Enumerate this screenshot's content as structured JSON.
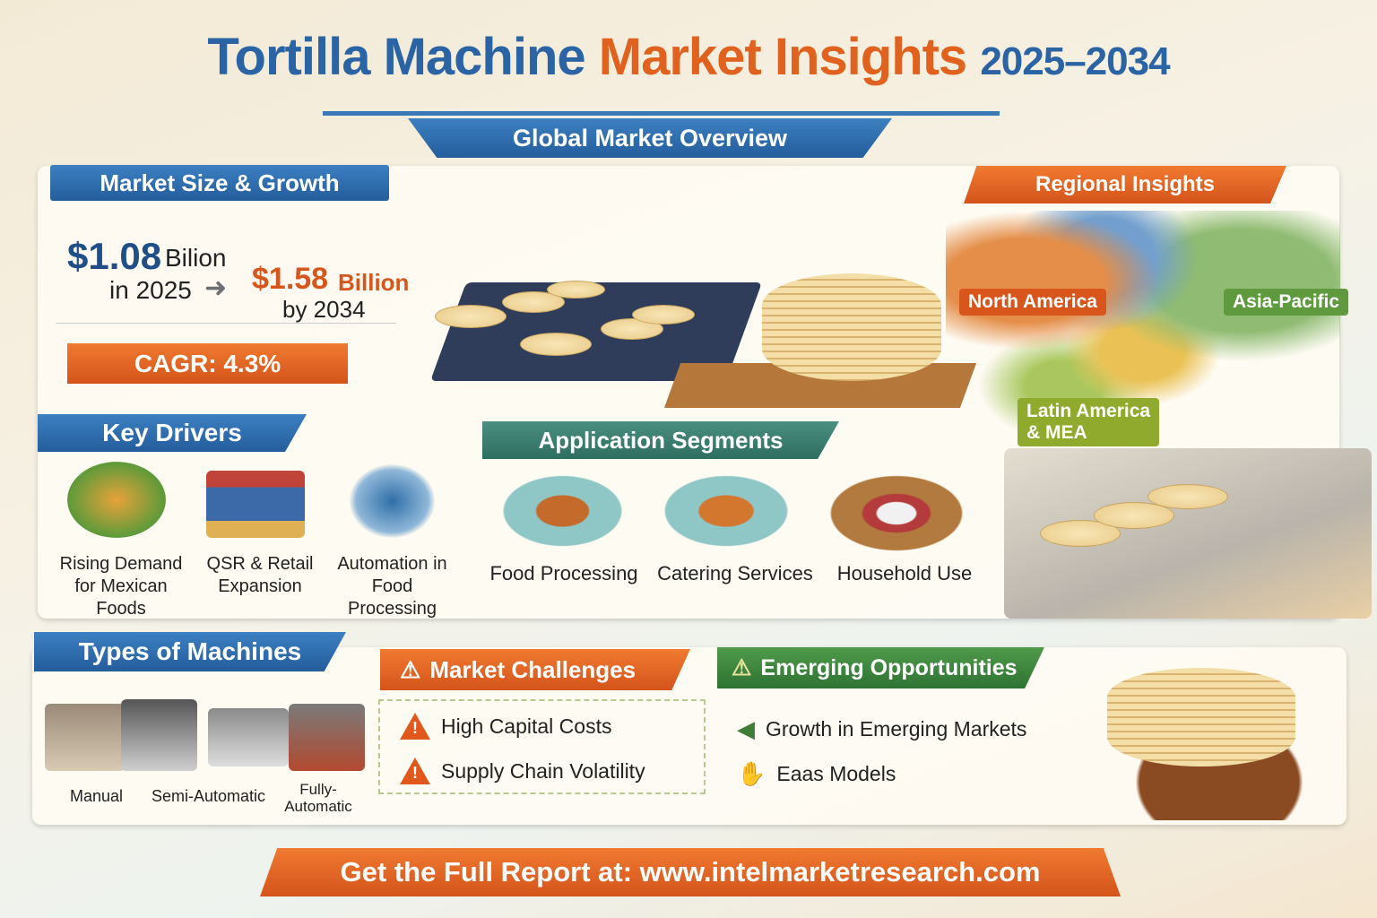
{
  "title": {
    "part1": "Tortilla Machine",
    "part2": "Market Insights",
    "years": "2025–2034"
  },
  "overview_label": "Global Market Overview",
  "market_size": {
    "heading": "Market Size & Growth",
    "value_2025": "$1.08",
    "unit_2025": "Bilion",
    "year_2025": "in 2025",
    "value_2034": "$1.58",
    "unit_2034": "Billion",
    "year_2034": "by 2034",
    "cagr": "CAGR: 4.3%"
  },
  "regional": {
    "heading": "Regional Insights",
    "regions": [
      "North America",
      "Asia-Pacific",
      "Latin America\n& MEA"
    ]
  },
  "key_drivers": {
    "heading": "Key Drivers",
    "items": [
      {
        "label": "Rising Demand for Mexican Foods",
        "icon": "food-icon"
      },
      {
        "label": "QSR & Retail Expansion",
        "icon": "store-icon"
      },
      {
        "label": "Automation in Food Processing",
        "icon": "robot-icon"
      }
    ]
  },
  "applications": {
    "heading": "Application Segments",
    "items": [
      {
        "label": "Food Processing",
        "icon": "factory-icon"
      },
      {
        "label": "Catering Services",
        "icon": "kitchen-icon"
      },
      {
        "label": "Household Use",
        "icon": "household-icon"
      }
    ]
  },
  "machine_types": {
    "heading": "Types of Machines",
    "items": [
      "Manual",
      "Semi-Automatic",
      "Fully-\nAutomatic"
    ]
  },
  "challenges": {
    "heading": "Market Challenges",
    "items": [
      "High Capital Costs",
      "Supply Chain Volatility"
    ]
  },
  "opportunities": {
    "heading": "Emerging Opportunities",
    "items": [
      "Growth in Emerging Markets",
      "Eaas Models"
    ]
  },
  "footer": "Get the Full Report at: www.intelmarketresearch.com",
  "colors": {
    "blue": "#2a64a4",
    "orange": "#e0621e",
    "green": "#2f7334",
    "teal": "#2e6e61"
  }
}
